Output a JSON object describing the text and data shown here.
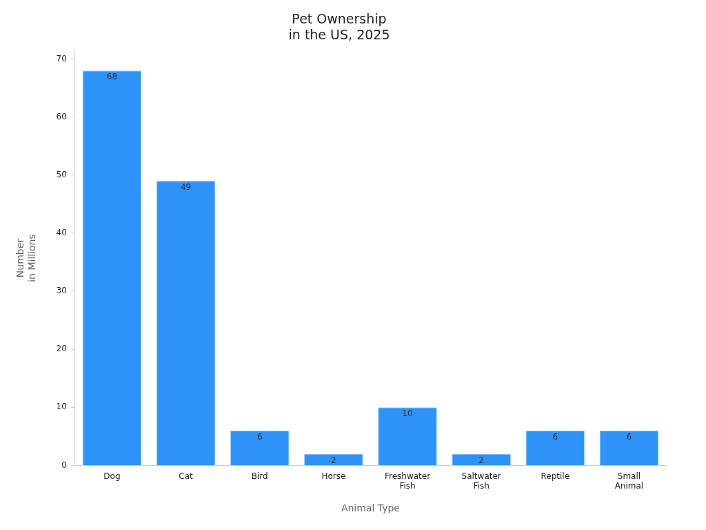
{
  "chart_data": {
    "type": "bar",
    "title": "Pet Ownership\nin the US, 2025",
    "xlabel": "Animal Type",
    "ylabel": "Number\nin Millions",
    "categories": [
      "Dog",
      "Cat",
      "Bird",
      "Horse",
      "Freshwater\nFish",
      "Saltwater\nFish",
      "Reptile",
      "Small\nAnimal"
    ],
    "values": [
      68,
      49,
      6,
      2,
      10,
      2,
      6,
      6
    ],
    "color": "#2e93f8",
    "ylim": [
      0,
      71.4
    ],
    "yticks": [
      0,
      10,
      20,
      30,
      40,
      50,
      60,
      70
    ],
    "grid": false,
    "legend": false,
    "data_labels": true
  }
}
